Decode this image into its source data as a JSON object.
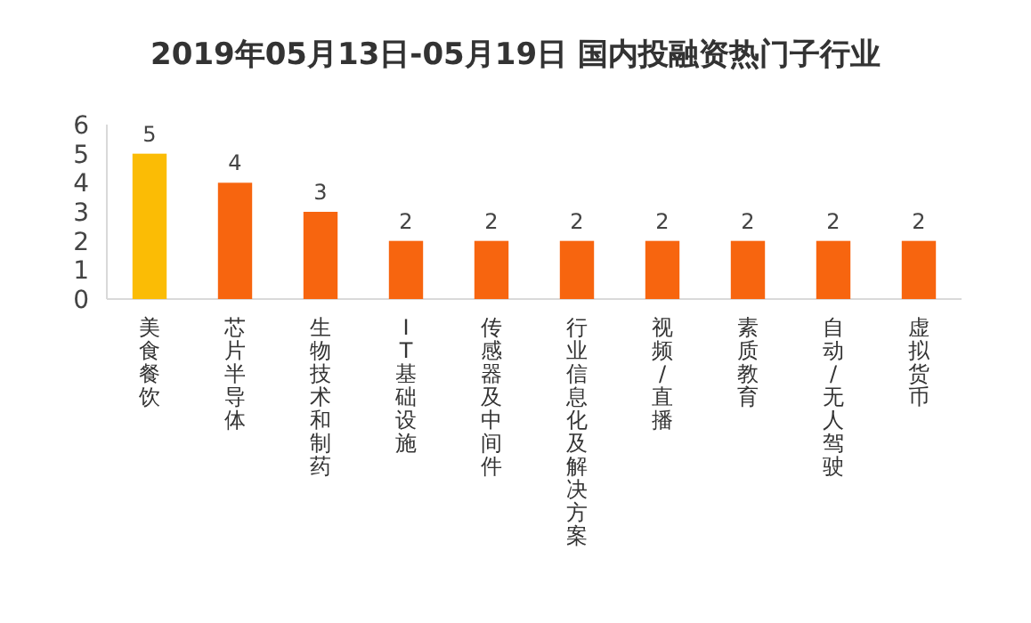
{
  "chart_data": {
    "type": "bar",
    "title": "2019年05月13日-05月19日 国内投融资热门子行业",
    "categories": [
      "美食餐饮",
      "芯片半导体",
      "生物技术和制药",
      "IT基础设施",
      "传感器及中间件",
      "行业信息化及解决方案",
      "视频/直播",
      "素质教育",
      "自动/无人驾驶",
      "虚拟货币"
    ],
    "values": [
      5,
      4,
      3,
      2,
      2,
      2,
      2,
      2,
      2,
      2
    ],
    "colors": [
      "#fbbc05",
      "#f7650f",
      "#f7650f",
      "#f7650f",
      "#f7650f",
      "#f7650f",
      "#f7650f",
      "#f7650f",
      "#f7650f",
      "#f7650f"
    ],
    "ylim": [
      0,
      6
    ],
    "yticks": [
      0,
      1,
      2,
      3,
      4,
      5,
      6
    ],
    "data_labels": true,
    "grid": false
  }
}
